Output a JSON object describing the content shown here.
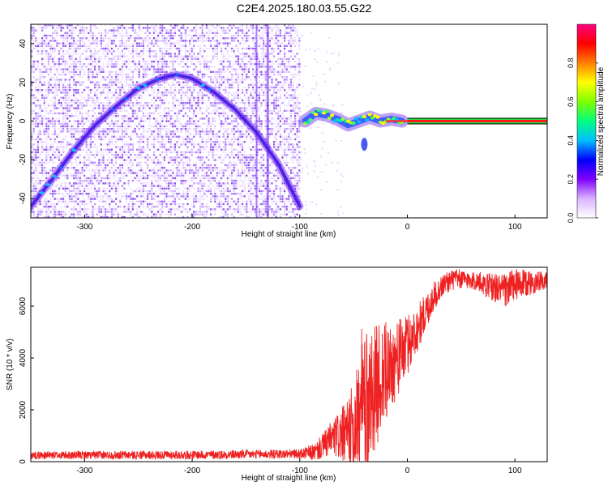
{
  "title": "C2E4.2025.180.03.55.G22",
  "chart_data": [
    {
      "type": "heatmap",
      "xlabel": "Height of straight line (km)",
      "ylabel": "Frequency (Hz)",
      "xlim": [
        -350,
        130
      ],
      "ylim": [
        -50,
        50
      ],
      "x_ticks": [
        -300,
        -200,
        -100,
        0,
        100
      ],
      "y_ticks": [
        -40,
        -20,
        0,
        20,
        40
      ],
      "grid": false,
      "colorbar": {
        "label": "Normalized spectral amplitude",
        "range": [
          0,
          1
        ],
        "ticks": [
          0.0,
          0.2,
          0.4,
          0.6,
          0.8
        ],
        "colors": [
          "#ffffff",
          "#d9b3ff",
          "#7f00ff",
          "#0000ff",
          "#00bfff",
          "#00ff80",
          "#80ff00",
          "#ffff00",
          "#ff8000",
          "#ff0000",
          "#ff0080"
        ]
      },
      "noise_region_x": [
        -350,
        -100
      ],
      "doppler_curve": [
        {
          "x": -350,
          "y": -44
        },
        {
          "x": -330,
          "y": -30
        },
        {
          "x": -310,
          "y": -15
        },
        {
          "x": -290,
          "y": -2
        },
        {
          "x": -270,
          "y": 8
        },
        {
          "x": -250,
          "y": 17
        },
        {
          "x": -230,
          "y": 22
        },
        {
          "x": -215,
          "y": 24
        },
        {
          "x": -200,
          "y": 22
        },
        {
          "x": -180,
          "y": 15
        },
        {
          "x": -160,
          "y": 6
        },
        {
          "x": -140,
          "y": -6
        },
        {
          "x": -120,
          "y": -22
        },
        {
          "x": -100,
          "y": -44
        }
      ],
      "vertical_streaks_x": [
        -140,
        -130
      ],
      "direct_band_points": [
        {
          "x": -95,
          "y": 0
        },
        {
          "x": -85,
          "y": 4
        },
        {
          "x": -75,
          "y": 3
        },
        {
          "x": -65,
          "y": 1
        },
        {
          "x": -55,
          "y": -2
        },
        {
          "x": -45,
          "y": 0
        },
        {
          "x": -35,
          "y": 2
        },
        {
          "x": -25,
          "y": 0
        },
        {
          "x": -15,
          "y": 1
        },
        {
          "x": -5,
          "y": 0
        }
      ],
      "side_lobe": {
        "x": -40,
        "y": -12
      },
      "steady_line": {
        "x_start": 0,
        "x_end": 130,
        "y": 0
      }
    },
    {
      "type": "line",
      "xlabel": "Height of straight line (km)",
      "ylabel": "SNR (10 * v/v)",
      "xlim": [
        -350,
        130
      ],
      "ylim": [
        0,
        7500
      ],
      "x_ticks": [
        -300,
        -200,
        -100,
        0,
        100
      ],
      "y_ticks": [
        0,
        2000,
        4000,
        6000
      ],
      "grid": false,
      "color": "#ee2222",
      "trend": [
        {
          "x": -350,
          "y": 250
        },
        {
          "x": -200,
          "y": 260
        },
        {
          "x": -100,
          "y": 300
        },
        {
          "x": -85,
          "y": 380
        },
        {
          "x": -70,
          "y": 900
        },
        {
          "x": -55,
          "y": 1100
        },
        {
          "x": -45,
          "y": 1700
        },
        {
          "x": -35,
          "y": 2500
        },
        {
          "x": -25,
          "y": 3200
        },
        {
          "x": -15,
          "y": 3700
        },
        {
          "x": -5,
          "y": 4200
        },
        {
          "x": 5,
          "y": 4800
        },
        {
          "x": 15,
          "y": 5600
        },
        {
          "x": 25,
          "y": 6400
        },
        {
          "x": 35,
          "y": 6900
        },
        {
          "x": 45,
          "y": 7050
        },
        {
          "x": 60,
          "y": 7000
        },
        {
          "x": 75,
          "y": 6800
        },
        {
          "x": 90,
          "y": 6600
        },
        {
          "x": 100,
          "y": 6800
        },
        {
          "x": 115,
          "y": 6900
        },
        {
          "x": 130,
          "y": 7000
        }
      ],
      "noise_amplitude": [
        {
          "x": -350,
          "y": 150
        },
        {
          "x": -100,
          "y": 180
        },
        {
          "x": -85,
          "y": 350
        },
        {
          "x": -70,
          "y": 700
        },
        {
          "x": -55,
          "y": 1300
        },
        {
          "x": -40,
          "y": 2800
        },
        {
          "x": -25,
          "y": 2200
        },
        {
          "x": -10,
          "y": 1500
        },
        {
          "x": 10,
          "y": 900
        },
        {
          "x": 30,
          "y": 450
        },
        {
          "x": 60,
          "y": 350
        },
        {
          "x": 95,
          "y": 700
        },
        {
          "x": 130,
          "y": 300
        }
      ]
    }
  ]
}
